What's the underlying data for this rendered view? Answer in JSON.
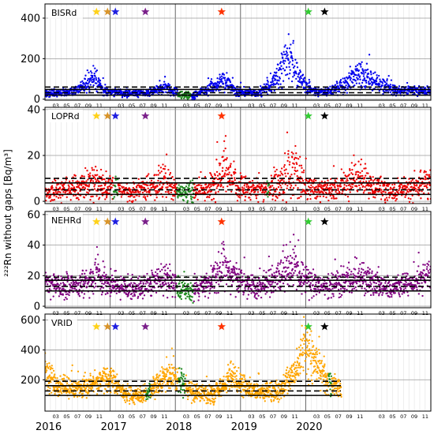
{
  "chart_data": {
    "type": "scatter",
    "ylabel": "²²²Rn without gaps [Bq/m³]",
    "x_years": [
      "2016",
      "2017",
      "2018",
      "2019",
      "2020"
    ],
    "x_minor_months": [
      "03",
      "05",
      "07",
      "09",
      "11"
    ],
    "x_range": [
      "2016-01",
      "2021-12"
    ],
    "colors": {
      "gap_fill": "#1f8a1f",
      "grid": "#9a9a9a",
      "minor_grid": "#e2e2e2"
    },
    "star_events": [
      {
        "x": 2016.79,
        "color": "#ffd21a"
      },
      {
        "x": 2016.96,
        "color": "#d9952b"
      },
      {
        "x": 2017.08,
        "color": "#1f1fe0"
      },
      {
        "x": 2017.54,
        "color": "#7a1f8a"
      },
      {
        "x": 2018.71,
        "color": "#ff3300"
      },
      {
        "x": 2020.04,
        "color": "#33cc33"
      },
      {
        "x": 2020.29,
        "color": "#000000"
      }
    ],
    "panels": [
      {
        "station": "BISRd",
        "color": "#0000ee",
        "ylim": [
          -5,
          470
        ],
        "yticks": [
          0,
          200,
          400
        ],
        "base": 32,
        "noise": 9,
        "reference_lines": [
          60,
          48,
          32,
          20
        ],
        "segments": [
          {
            "x": 2016.0,
            "y": 30
          },
          {
            "x": 2016.45,
            "y": 35
          },
          {
            "x": 2016.75,
            "y": 100
          },
          {
            "x": 2016.9,
            "y": 40
          },
          {
            "x": 2017.3,
            "y": 28
          },
          {
            "x": 2017.6,
            "y": 35
          },
          {
            "x": 2017.85,
            "y": 55
          },
          {
            "x": 2018.05,
            "y": 25
          },
          {
            "x": 2018.3,
            "y": 15
          },
          {
            "x": 2018.5,
            "y": 55
          },
          {
            "x": 2018.75,
            "y": 85
          },
          {
            "x": 2018.95,
            "y": 40
          },
          {
            "x": 2019.25,
            "y": 30
          },
          {
            "x": 2019.5,
            "y": 80
          },
          {
            "x": 2019.75,
            "y": 220
          },
          {
            "x": 2019.9,
            "y": 90
          },
          {
            "x": 2020.1,
            "y": 40
          },
          {
            "x": 2020.35,
            "y": 35
          },
          {
            "x": 2020.65,
            "y": 90
          },
          {
            "x": 2020.85,
            "y": 120
          },
          {
            "x": 2021.1,
            "y": 80
          },
          {
            "x": 2021.35,
            "y": 45
          },
          {
            "x": 2021.65,
            "y": 45
          },
          {
            "x": 2021.95,
            "y": 40
          }
        ],
        "gap_ranges": [
          [
            2018.04,
            2018.25
          ]
        ]
      },
      {
        "station": "LOPRd",
        "color": "#ee0000",
        "ylim": [
          -1,
          41
        ],
        "yticks": [
          0,
          20,
          40
        ],
        "base": 5,
        "noise": 2.2,
        "reference_lines": [
          10,
          8,
          5,
          3
        ],
        "segments": [
          {
            "x": 2016.0,
            "y": 4
          },
          {
            "x": 2016.45,
            "y": 6
          },
          {
            "x": 2016.75,
            "y": 9
          },
          {
            "x": 2016.95,
            "y": 6
          },
          {
            "x": 2017.3,
            "y": 4
          },
          {
            "x": 2017.6,
            "y": 6
          },
          {
            "x": 2017.85,
            "y": 8
          },
          {
            "x": 2018.05,
            "y": 4
          },
          {
            "x": 2018.3,
            "y": 4
          },
          {
            "x": 2018.55,
            "y": 6
          },
          {
            "x": 2018.75,
            "y": 14
          },
          {
            "x": 2018.95,
            "y": 7
          },
          {
            "x": 2019.25,
            "y": 4
          },
          {
            "x": 2019.5,
            "y": 6
          },
          {
            "x": 2019.8,
            "y": 13
          },
          {
            "x": 2019.95,
            "y": 8
          },
          {
            "x": 2020.2,
            "y": 4
          },
          {
            "x": 2020.5,
            "y": 6
          },
          {
            "x": 2020.8,
            "y": 11
          },
          {
            "x": 2021.0,
            "y": 6
          },
          {
            "x": 2021.35,
            "y": 4
          },
          {
            "x": 2021.65,
            "y": 6
          },
          {
            "x": 2021.95,
            "y": 8
          }
        ],
        "gap_ranges": [
          [
            2017.05,
            2017.12
          ],
          [
            2018.02,
            2018.28
          ],
          [
            2019.4,
            2019.44
          ]
        ]
      },
      {
        "station": "NEHRd",
        "color": "#800080",
        "ylim": [
          -1,
          62
        ],
        "yticks": [
          0,
          20,
          40,
          60
        ],
        "base": 13,
        "noise": 3.5,
        "reference_lines": [
          19,
          17,
          13,
          10
        ],
        "segments": [
          {
            "x": 2016.0,
            "y": 14
          },
          {
            "x": 2016.5,
            "y": 13
          },
          {
            "x": 2016.8,
            "y": 20
          },
          {
            "x": 2017.0,
            "y": 15
          },
          {
            "x": 2017.3,
            "y": 11
          },
          {
            "x": 2017.6,
            "y": 14
          },
          {
            "x": 2017.85,
            "y": 18
          },
          {
            "x": 2018.05,
            "y": 12
          },
          {
            "x": 2018.3,
            "y": 10
          },
          {
            "x": 2018.55,
            "y": 18
          },
          {
            "x": 2018.75,
            "y": 27
          },
          {
            "x": 2018.95,
            "y": 17
          },
          {
            "x": 2019.25,
            "y": 12
          },
          {
            "x": 2019.55,
            "y": 18
          },
          {
            "x": 2019.8,
            "y": 28
          },
          {
            "x": 2019.95,
            "y": 20
          },
          {
            "x": 2020.2,
            "y": 12
          },
          {
            "x": 2020.5,
            "y": 15
          },
          {
            "x": 2020.8,
            "y": 20
          },
          {
            "x": 2021.0,
            "y": 16
          },
          {
            "x": 2021.35,
            "y": 12
          },
          {
            "x": 2021.65,
            "y": 15
          },
          {
            "x": 2021.95,
            "y": 22
          }
        ],
        "gap_ranges": [
          [
            2018.02,
            2018.28
          ]
        ]
      },
      {
        "station": "VRID",
        "color": "#ffa500",
        "ylim": [
          -10,
          640
        ],
        "yticks": [
          200,
          400,
          600
        ],
        "base": 150,
        "noise": 32,
        "reference_lines": [
          190,
          160,
          125,
          95
        ],
        "segments": [
          {
            "x": 2016.0,
            "y": 260
          },
          {
            "x": 2016.2,
            "y": 150
          },
          {
            "x": 2016.5,
            "y": 140
          },
          {
            "x": 2016.8,
            "y": 180
          },
          {
            "x": 2017.0,
            "y": 210
          },
          {
            "x": 2017.25,
            "y": 100
          },
          {
            "x": 2017.55,
            "y": 100
          },
          {
            "x": 2017.8,
            "y": 190
          },
          {
            "x": 2017.95,
            "y": 240
          },
          {
            "x": 2018.1,
            "y": 180
          },
          {
            "x": 2018.3,
            "y": 100
          },
          {
            "x": 2018.6,
            "y": 110
          },
          {
            "x": 2018.85,
            "y": 200
          },
          {
            "x": 2019.0,
            "y": 170
          },
          {
            "x": 2019.3,
            "y": 110
          },
          {
            "x": 2019.6,
            "y": 120
          },
          {
            "x": 2019.85,
            "y": 270
          },
          {
            "x": 2020.0,
            "y": 420
          },
          {
            "x": 2020.2,
            "y": 280
          },
          {
            "x": 2020.4,
            "y": 170
          },
          {
            "x": 2020.55,
            "y": 130
          }
        ],
        "gap_ranges": [
          [
            2017.55,
            2017.62
          ],
          [
            2018.05,
            2018.15
          ],
          [
            2020.35,
            2020.4
          ]
        ],
        "reference_x_range": [
          2016.0,
          2020.54
        ]
      }
    ]
  }
}
